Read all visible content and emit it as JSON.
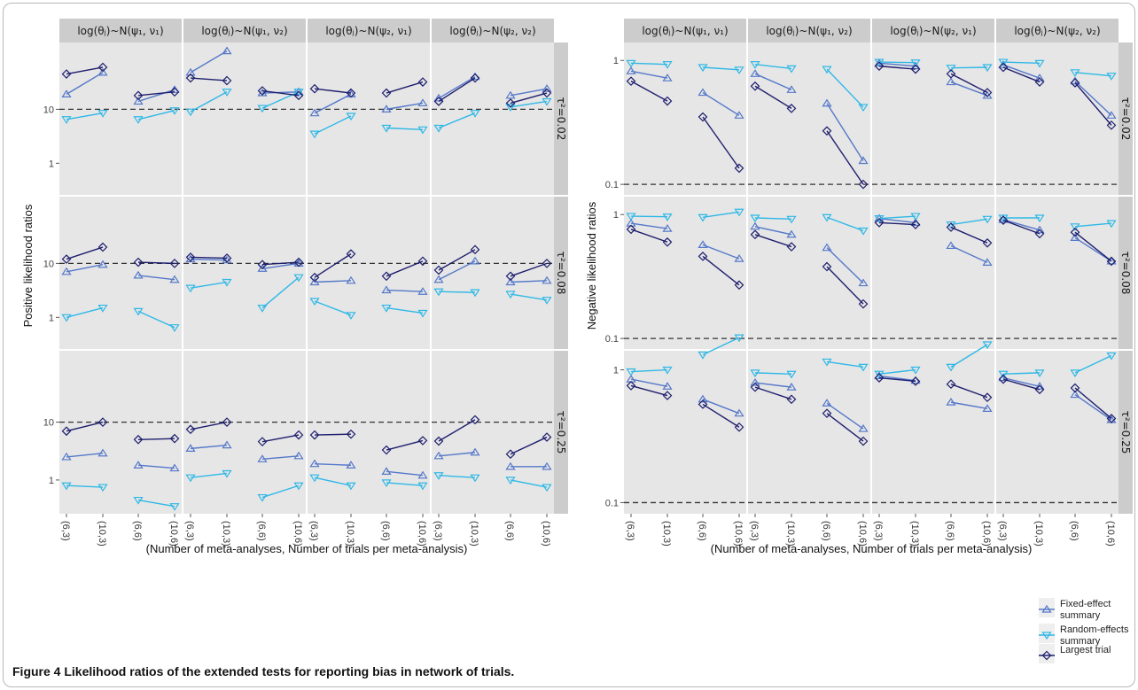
{
  "caption": {
    "label": "Figure 4",
    "text": "Likelihood ratios of the extended tests for reporting bias in network of trials."
  },
  "colors": {
    "panel_bg": "#e6e6e6",
    "strip_bg": "#cccccc",
    "grid": "#ffffff",
    "fixed": "#5578c9",
    "random": "#2fb8e6",
    "largest": "#1e1e6e",
    "ref_line": "#333333"
  },
  "facet_columns": [
    "log(θⱼ)~N(ψ₁, ν₁)",
    "log(θⱼ)~N(ψ₁, ν₂)",
    "log(θⱼ)~N(ψ₂, ν₁)",
    "log(θⱼ)~N(ψ₂, ν₂)"
  ],
  "facet_rows": [
    "τ²=0.02",
    "τ²=0.08",
    "τ²=0.25"
  ],
  "x_categories": [
    "(6,3)",
    "(10,3)",
    "(6,6)",
    "(10,6)"
  ],
  "legend": [
    {
      "key": "fixed",
      "label": "Fixed-effect summary"
    },
    {
      "key": "random",
      "label": "Random-effects summary"
    },
    {
      "key": "largest",
      "label": "Largest trial"
    }
  ],
  "chart_data": [
    {
      "type": "line",
      "ylabel": "Positive likelihood ratios",
      "xlabel": "(Number of meta-analyses, Number of trials per meta-analysis)",
      "y_scale": "log",
      "y_ticks": [
        "1",
        "10"
      ],
      "reference_line": 10,
      "panels": [
        {
          "row": 0,
          "col": 0,
          "fixed": [
            19,
            48
          ],
          "random": [
            6.5,
            8.5
          ],
          "largest": [
            45,
            60
          ],
          "fixed2": [
            14,
            23
          ],
          "random2": [
            6.5,
            9.5
          ],
          "largest2": [
            18,
            21
          ]
        },
        {
          "row": 0,
          "col": 1,
          "fixed": [
            48,
            120
          ],
          "random": [
            9,
            21
          ],
          "largest": [
            38,
            34
          ],
          "fixed2": [
            20,
            21
          ],
          "random2": [
            10.5,
            21
          ],
          "largest2": [
            22,
            18
          ]
        },
        {
          "row": 0,
          "col": 2,
          "fixed": [
            8.5,
            19
          ],
          "random": [
            3.5,
            7.5
          ],
          "largest": [
            24,
            20
          ],
          "fixed2": [
            10,
            13
          ],
          "random2": [
            4.5,
            4.2
          ],
          "largest2": [
            20,
            32
          ]
        },
        {
          "row": 0,
          "col": 3,
          "fixed": [
            16,
            40
          ],
          "random": [
            4.5,
            8.5
          ],
          "largest": [
            14,
            38
          ],
          "fixed2": [
            18,
            24
          ],
          "random2": [
            11,
            14
          ],
          "largest2": [
            13,
            20
          ]
        },
        {
          "row": 1,
          "col": 0,
          "fixed": [
            7,
            9.5
          ],
          "random": [
            1.0,
            1.5
          ],
          "largest": [
            12,
            20
          ],
          "fixed2": [
            6,
            5
          ],
          "random2": [
            1.3,
            0.65
          ],
          "largest2": [
            10.5,
            10
          ]
        },
        {
          "row": 1,
          "col": 1,
          "fixed": [
            12,
            11.5
          ],
          "random": [
            3.5,
            4.5
          ],
          "largest": [
            13,
            12.5
          ],
          "fixed2": [
            8,
            10
          ],
          "random2": [
            1.5,
            5.5
          ],
          "largest2": [
            9.5,
            10.5
          ]
        },
        {
          "row": 1,
          "col": 2,
          "fixed": [
            4.5,
            4.8
          ],
          "random": [
            2.0,
            1.1
          ],
          "largest": [
            5.5,
            15
          ],
          "fixed2": [
            3.2,
            3.0
          ],
          "random2": [
            1.5,
            1.2
          ],
          "largest2": [
            5.8,
            11
          ]
        },
        {
          "row": 1,
          "col": 3,
          "fixed": [
            5,
            11
          ],
          "random": [
            3.0,
            2.9
          ],
          "largest": [
            7.5,
            18
          ],
          "fixed2": [
            4.5,
            4.8
          ],
          "random2": [
            2.7,
            2.1
          ],
          "largest2": [
            5.8,
            10
          ]
        },
        {
          "row": 2,
          "col": 0,
          "fixed": [
            2.5,
            2.9
          ],
          "random": [
            0.8,
            0.75
          ],
          "largest": [
            7,
            10
          ],
          "fixed2": [
            1.8,
            1.6
          ],
          "random2": [
            0.45,
            0.35
          ],
          "largest2": [
            5,
            5.2
          ]
        },
        {
          "row": 2,
          "col": 1,
          "fixed": [
            3.5,
            4
          ],
          "random": [
            1.1,
            1.3
          ],
          "largest": [
            7.5,
            10
          ],
          "fixed2": [
            2.3,
            2.6
          ],
          "random2": [
            0.5,
            0.8
          ],
          "largest2": [
            4.6,
            6.0
          ]
        },
        {
          "row": 2,
          "col": 2,
          "fixed": [
            1.9,
            1.8
          ],
          "random": [
            1.1,
            0.8
          ],
          "largest": [
            6.0,
            6.2
          ],
          "fixed2": [
            1.4,
            1.2
          ],
          "random2": [
            0.9,
            0.8
          ],
          "largest2": [
            3.3,
            4.8
          ]
        },
        {
          "row": 2,
          "col": 3,
          "fixed": [
            2.6,
            3.0
          ],
          "random": [
            1.2,
            1.1
          ],
          "largest": [
            4.7,
            11
          ],
          "fixed2": [
            1.7,
            1.7
          ],
          "random2": [
            1.0,
            0.75
          ],
          "largest2": [
            2.8,
            5.5
          ]
        }
      ]
    },
    {
      "type": "line",
      "ylabel": "Negative likelihood ratios",
      "xlabel": "(Number of meta-analyses, Number of trials per meta-analysis)",
      "y_scale": "log",
      "y_ticks": [
        "0.1",
        "1"
      ],
      "reference_line": 0.1,
      "panels": [
        {
          "row": 0,
          "col": 0,
          "fixed": [
            0.82,
            0.72
          ],
          "random": [
            0.95,
            0.93
          ],
          "largest": [
            0.68,
            0.47
          ],
          "fixed2": [
            0.55,
            0.36
          ],
          "random2": [
            0.88,
            0.84
          ],
          "largest2": [
            0.35,
            0.135
          ]
        },
        {
          "row": 0,
          "col": 1,
          "fixed": [
            0.78,
            0.58
          ],
          "random": [
            0.93,
            0.86
          ],
          "largest": [
            0.62,
            0.41
          ],
          "fixed2": [
            0.45,
            0.155
          ],
          "random2": [
            0.85,
            0.42
          ],
          "largest2": [
            0.27,
            0.1
          ]
        },
        {
          "row": 0,
          "col": 2,
          "fixed": [
            0.95,
            0.9
          ],
          "random": [
            0.97,
            0.96
          ],
          "largest": [
            0.9,
            0.85
          ],
          "fixed2": [
            0.67,
            0.52
          ],
          "random2": [
            0.87,
            0.88
          ],
          "largest2": [
            0.78,
            0.55
          ]
        },
        {
          "row": 0,
          "col": 3,
          "fixed": [
            0.92,
            0.72
          ],
          "random": [
            0.97,
            0.95
          ],
          "largest": [
            0.88,
            0.67
          ],
          "fixed2": [
            0.68,
            0.36
          ],
          "random2": [
            0.8,
            0.75
          ],
          "largest2": [
            0.66,
            0.3
          ]
        },
        {
          "row": 1,
          "col": 0,
          "fixed": [
            0.85,
            0.77
          ],
          "random": [
            0.97,
            0.96
          ],
          "largest": [
            0.76,
            0.6
          ],
          "fixed2": [
            0.57,
            0.44
          ],
          "random2": [
            0.95,
            1.05
          ],
          "largest2": [
            0.46,
            0.27
          ]
        },
        {
          "row": 1,
          "col": 1,
          "fixed": [
            0.8,
            0.69
          ],
          "random": [
            0.94,
            0.92
          ],
          "largest": [
            0.69,
            0.55
          ],
          "fixed2": [
            0.54,
            0.28
          ],
          "random2": [
            0.95,
            0.74
          ],
          "largest2": [
            0.38,
            0.19
          ]
        },
        {
          "row": 1,
          "col": 2,
          "fixed": [
            0.93,
            0.86
          ],
          "random": [
            0.93,
            0.97
          ],
          "largest": [
            0.86,
            0.83
          ],
          "fixed2": [
            0.56,
            0.41
          ],
          "random2": [
            0.83,
            0.92
          ],
          "largest2": [
            0.79,
            0.59
          ]
        },
        {
          "row": 1,
          "col": 3,
          "fixed": [
            0.91,
            0.75
          ],
          "random": [
            0.94,
            0.94
          ],
          "largest": [
            0.9,
            0.7
          ],
          "fixed2": [
            0.65,
            0.42
          ],
          "random2": [
            0.8,
            0.85
          ],
          "largest2": [
            0.72,
            0.42
          ]
        },
        {
          "row": 2,
          "col": 0,
          "fixed": [
            0.85,
            0.75
          ],
          "random": [
            0.97,
            1.0
          ],
          "largest": [
            0.76,
            0.64
          ],
          "fixed2": [
            0.6,
            0.47
          ],
          "random2": [
            1.3,
            1.75
          ],
          "largest2": [
            0.55,
            0.37
          ]
        },
        {
          "row": 2,
          "col": 1,
          "fixed": [
            0.8,
            0.74
          ],
          "random": [
            0.95,
            0.93
          ],
          "largest": [
            0.74,
            0.6
          ],
          "fixed2": [
            0.56,
            0.36
          ],
          "random2": [
            1.15,
            1.05
          ],
          "largest2": [
            0.47,
            0.29
          ]
        },
        {
          "row": 2,
          "col": 2,
          "fixed": [
            0.9,
            0.83
          ],
          "random": [
            0.93,
            1.0
          ],
          "largest": [
            0.87,
            0.82
          ],
          "fixed2": [
            0.57,
            0.51
          ],
          "random2": [
            1.05,
            1.55
          ],
          "largest2": [
            0.78,
            0.62
          ]
        },
        {
          "row": 2,
          "col": 3,
          "fixed": [
            0.87,
            0.75
          ],
          "random": [
            0.93,
            0.95
          ],
          "largest": [
            0.85,
            0.71
          ],
          "fixed2": [
            0.65,
            0.42
          ],
          "random2": [
            0.95,
            1.28
          ],
          "largest2": [
            0.73,
            0.43
          ]
        }
      ]
    }
  ]
}
